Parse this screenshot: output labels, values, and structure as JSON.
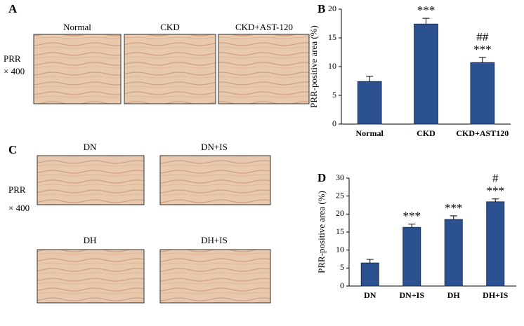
{
  "panel_a": {
    "label": "A",
    "images": [
      "Normal",
      "CKD",
      "CKD+AST-120"
    ],
    "stain": "PRR",
    "magnification": "× 400"
  },
  "panel_c": {
    "label": "C",
    "images": [
      "DN",
      "DN+IS",
      "DH",
      "DH+IS"
    ],
    "stain": "PRR",
    "magnification": "× 400"
  },
  "chart_data": [
    {
      "type": "bar",
      "panel_label": "B",
      "y_label": "PRR-positive area (%)",
      "categories": [
        "Normal",
        "CKD",
        "CKD+AST120"
      ],
      "values": [
        7.4,
        17.4,
        10.7
      ],
      "errors": [
        0.9,
        1.0,
        0.9
      ],
      "significance": [
        null,
        "***",
        "***"
      ],
      "significance_vs_control": [
        null,
        null,
        "##"
      ],
      "color": "#2c5191",
      "ylim": [
        0,
        20
      ],
      "yticks": [
        0,
        5,
        10,
        15,
        20
      ],
      "grid": false
    },
    {
      "type": "bar",
      "panel_label": "D",
      "y_label": "PRR-positive area (%)",
      "categories": [
        "DN",
        "DN+IS",
        "DH",
        "DH+IS"
      ],
      "values": [
        6.4,
        16.3,
        18.5,
        23.4
      ],
      "errors": [
        1.0,
        0.9,
        1.0,
        0.8
      ],
      "significance": [
        null,
        "***",
        "***",
        "***"
      ],
      "significance_vs_control": [
        null,
        null,
        null,
        "#"
      ],
      "color": "#2c5191",
      "ylim": [
        0,
        30
      ],
      "yticks": [
        0,
        5,
        10,
        15,
        20,
        25,
        30
      ],
      "grid": false
    }
  ]
}
